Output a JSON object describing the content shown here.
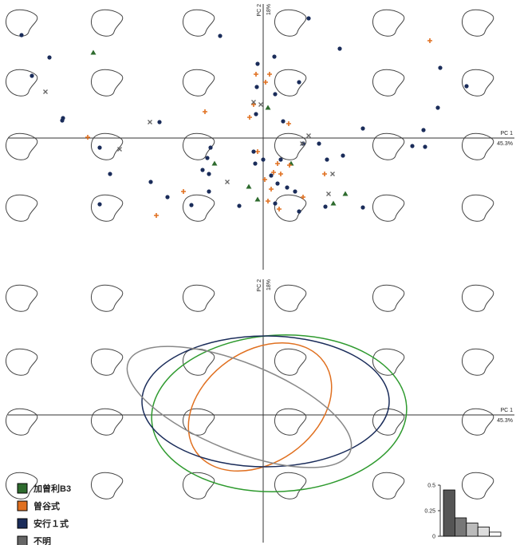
{
  "chart_data": [
    {
      "type": "scatter",
      "xlabel": "PC 1",
      "xlabel_sub": "45.3%",
      "ylabel": "PC 2",
      "ylabel_sub": "18%",
      "xlim": [
        -320,
        315
      ],
      "ylim": [
        -165,
        168
      ],
      "legend": "lower left",
      "series": [
        {
          "name": "加曾利B3",
          "color": "#2e6b2e",
          "marker": "triangle",
          "x": [
            -213,
            6,
            -61,
            -18,
            103,
            88,
            -7,
            35
          ],
          "y": [
            107,
            38,
            -32,
            -61,
            -70,
            -82,
            -77,
            -32
          ]
        },
        {
          "name": "曽谷式",
          "color": "#e07020",
          "marker": "plus",
          "x": [
            209,
            8,
            -9,
            3,
            -12,
            -17,
            32,
            -73,
            -220,
            -7,
            18,
            22,
            13,
            2,
            10,
            6,
            20,
            77,
            -100,
            -134,
            33,
            50
          ],
          "y": [
            122,
            80,
            80,
            70,
            42,
            26,
            18,
            33,
            1,
            -17,
            -32,
            -45,
            -43,
            -52,
            -64,
            -79,
            -89,
            -45,
            -67,
            -97,
            -34,
            -74
          ]
        },
        {
          "name": "安行１式",
          "color": "#1a2c5a",
          "marker": "dot",
          "x": [
            -303,
            -268,
            -290,
            -251,
            -252,
            -130,
            -205,
            -192,
            -141,
            -120,
            -205,
            -90,
            -54,
            57,
            96,
            125,
            187,
            203,
            201,
            219,
            222,
            255,
            45,
            -7,
            14,
            -8,
            15,
            -9,
            25,
            -66,
            -70,
            -76,
            -68,
            -68,
            -10,
            0,
            10,
            18,
            30,
            40,
            50,
            70,
            80,
            100,
            -30,
            15,
            45,
            78,
            125,
            22,
            -12
          ],
          "y": [
            129,
            101,
            78,
            25,
            22,
            20,
            -12,
            -45,
            -55,
            -74,
            -83,
            -84,
            128,
            150,
            112,
            12,
            -10,
            -11,
            10,
            38,
            88,
            65,
            70,
            93,
            102,
            64,
            55,
            30,
            21,
            -12,
            -25,
            -40,
            -45,
            -67,
            -32,
            -27,
            -47,
            -57,
            -62,
            -67,
            -7,
            -7,
            -27,
            -22,
            -85,
            -82,
            -92,
            -86,
            -87,
            -27,
            -17
          ]
        },
        {
          "name": "不明",
          "color": "#666666",
          "marker": "cross",
          "x": [
            -273,
            -142,
            -180,
            -12,
            -3,
            57,
            49,
            87,
            82,
            -45
          ],
          "y": [
            58,
            20,
            -14,
            45,
            42,
            3,
            -7,
            -45,
            -70,
            -55
          ]
        }
      ]
    },
    {
      "type": "ellipse",
      "xlabel": "PC 1",
      "xlabel_sub": "45.3%",
      "ylabel": "PC 2",
      "ylabel_sub": "18%",
      "xlim": [
        -320,
        315
      ],
      "ylim": [
        -160,
        170
      ],
      "series": [
        {
          "color": "#2e9a2e",
          "cx": 20,
          "cy": 2,
          "rx": 160,
          "ry": 98,
          "angle": 3
        },
        {
          "color": "#e07020",
          "cx": -4,
          "cy": 10,
          "rx": 98,
          "ry": 70,
          "angle": 35
        },
        {
          "color": "#1a2c5a",
          "cx": 3,
          "cy": 17,
          "rx": 155,
          "ry": 82,
          "angle": 0
        },
        {
          "color": "#888888",
          "cx": -30,
          "cy": 10,
          "rx": 150,
          "ry": 55,
          "angle": -22
        }
      ]
    },
    {
      "type": "bar",
      "categories": [
        null,
        null,
        null,
        null,
        null
      ],
      "values": [
        0.453,
        0.18,
        0.13,
        0.09,
        0.04
      ],
      "colors": [
        "#555555",
        "#777777",
        "#bbbbbb",
        "#dddddd",
        "#ffffff"
      ],
      "ylim": [
        0,
        0.5
      ],
      "yticks": [
        0,
        0.25,
        0.5
      ]
    }
  ]
}
